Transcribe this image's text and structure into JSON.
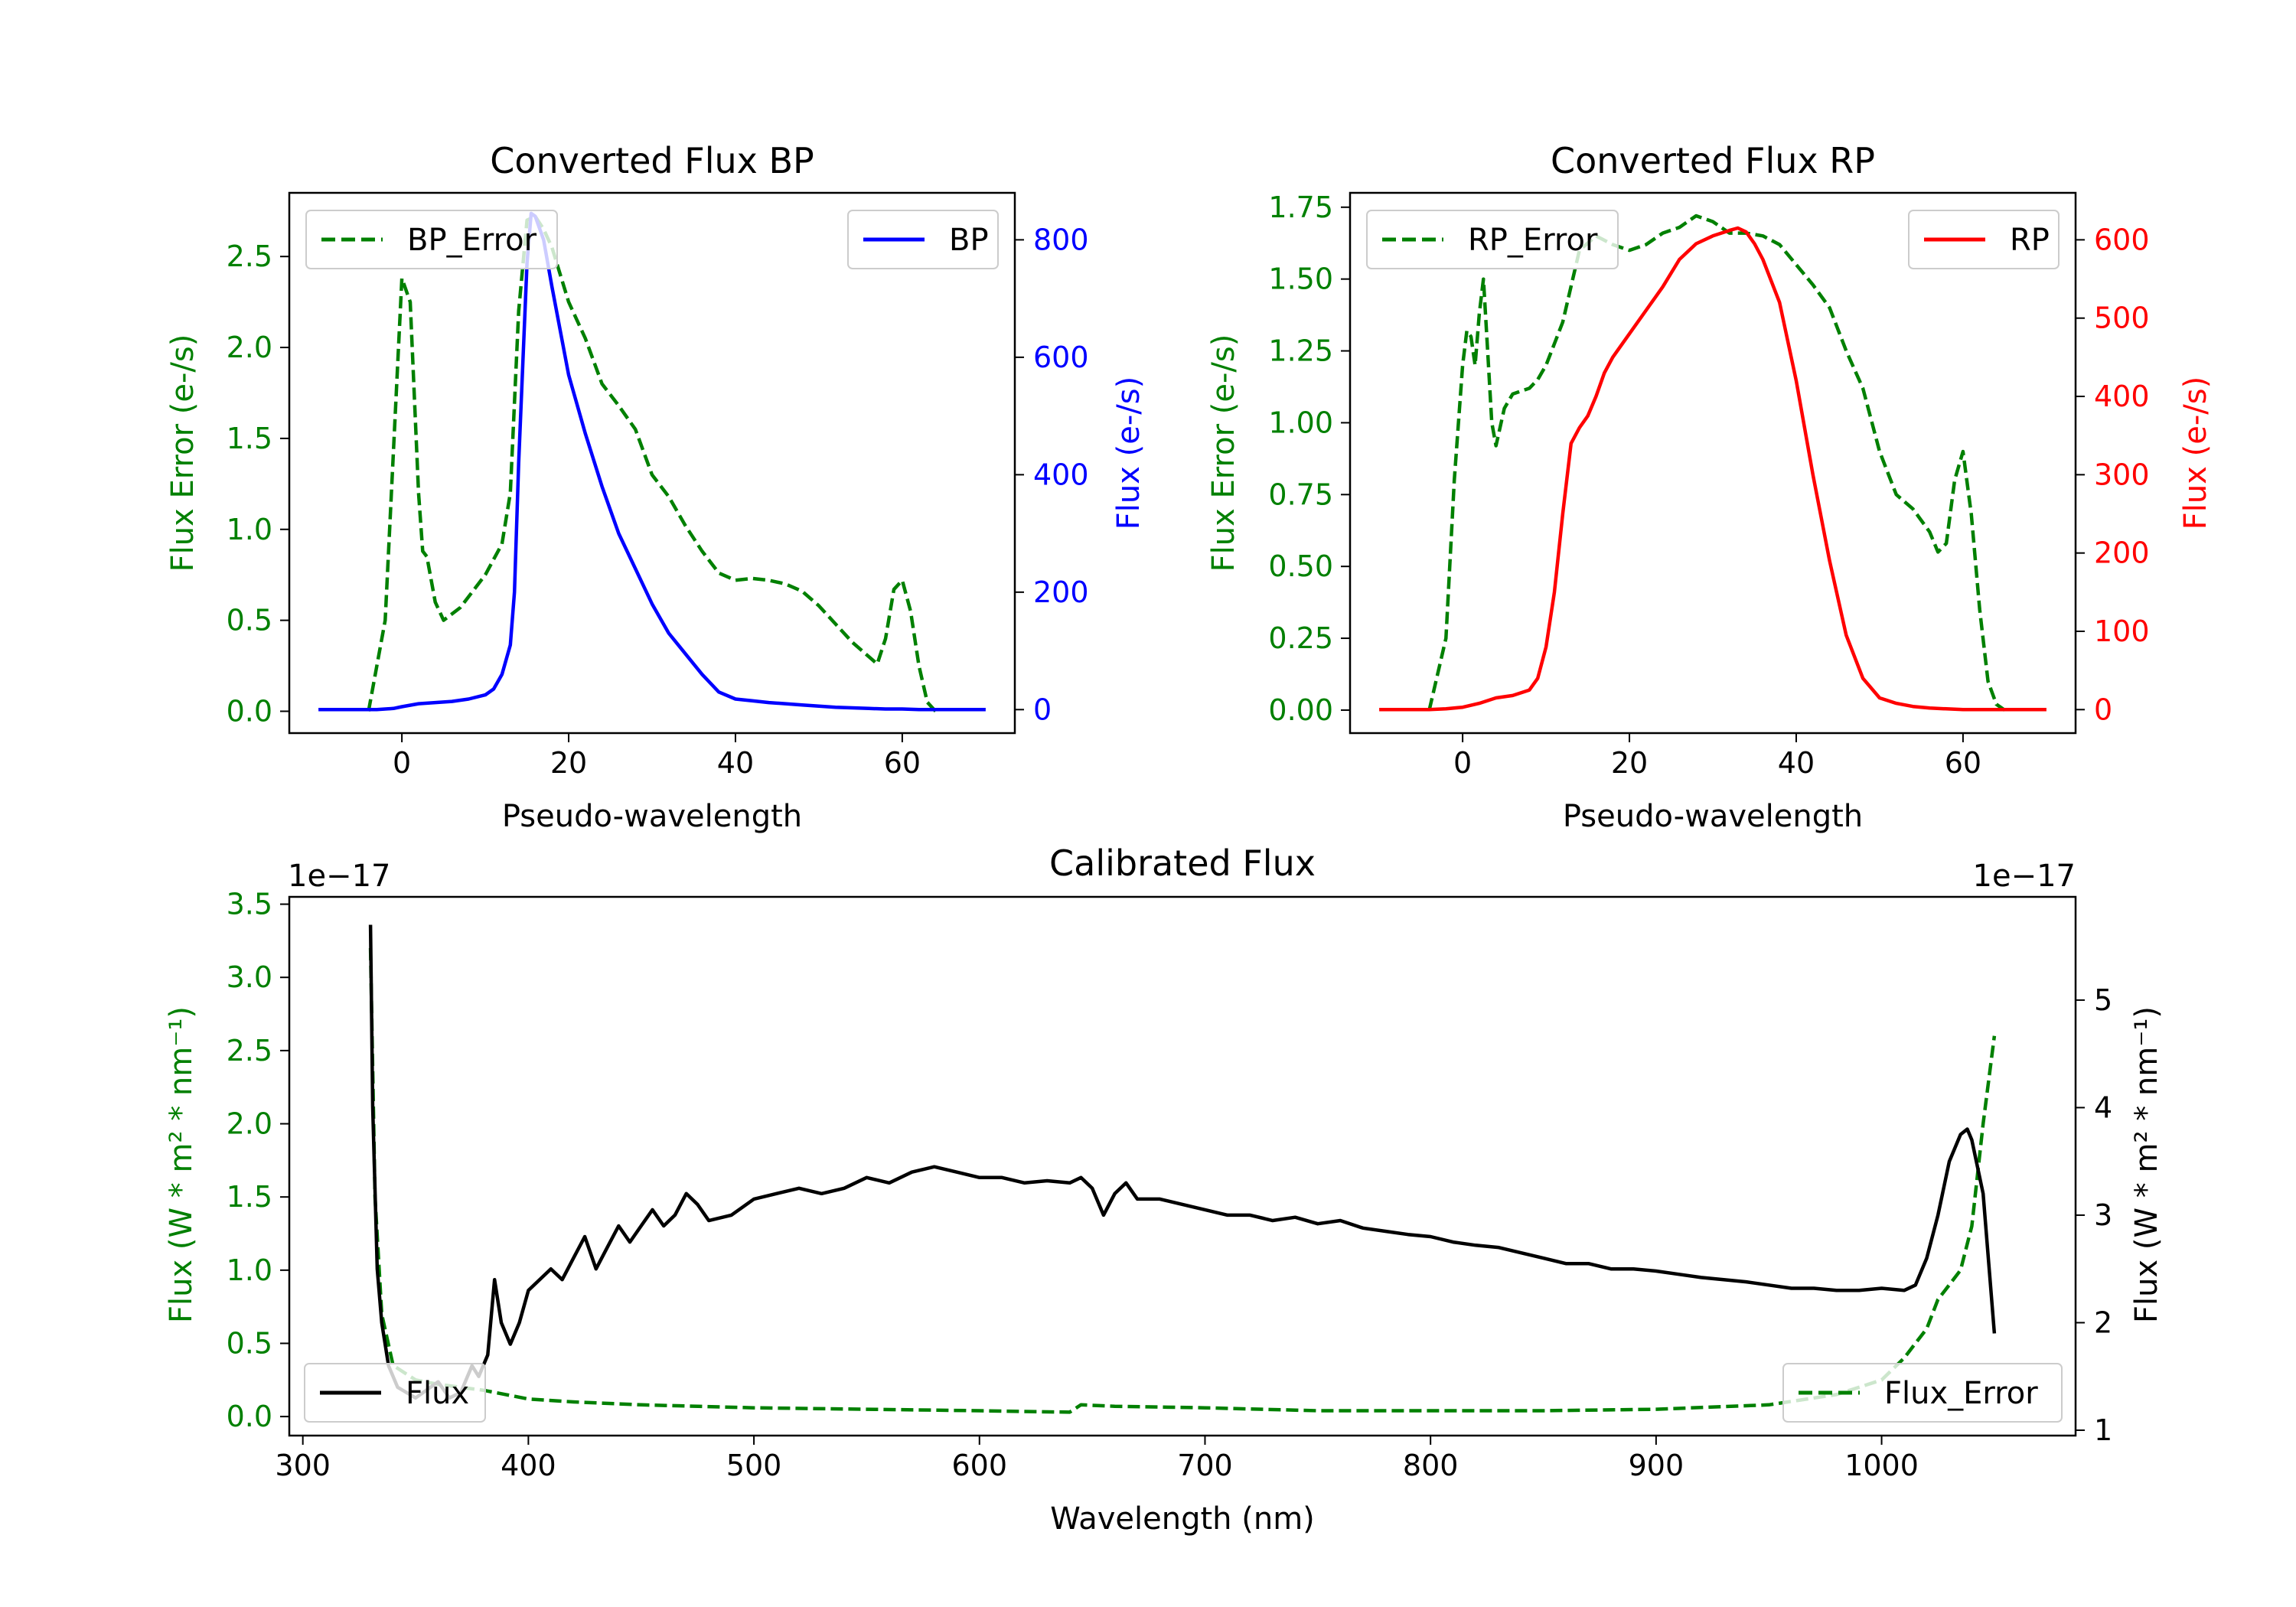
{
  "colors": {
    "bp": "#0000ff",
    "rp": "#ff0000",
    "error": "#008000",
    "flux": "#000000",
    "axis": "#000000"
  },
  "chart_data": [
    {
      "id": "bp",
      "type": "line",
      "title": "Converted Flux BP",
      "xlabel": "Pseudo-wavelength",
      "ylabel_left": "Flux Error (e-/s)",
      "ylabel_right": "Flux (e-/s)",
      "xlim": [
        -13.5,
        73.5
      ],
      "ylim_left": [
        -0.12,
        2.85
      ],
      "ylim_right": [
        -40,
        880
      ],
      "x_ticks": [
        0,
        20,
        40,
        60
      ],
      "x_tick_labels": [
        "0",
        "20",
        "40",
        "60"
      ],
      "yl_ticks": [
        0.0,
        0.5,
        1.0,
        1.5,
        2.0,
        2.5
      ],
      "yl_tick_labels": [
        "0.0",
        "0.5",
        "1.0",
        "1.5",
        "2.0",
        "2.5"
      ],
      "yr_ticks": [
        0,
        200,
        400,
        600,
        800
      ],
      "yr_tick_labels": [
        "0",
        "200",
        "400",
        "600",
        "800"
      ],
      "left_color": "error",
      "right_color": "bp",
      "legend_left": {
        "label": "BP_Error",
        "location": "upper-left"
      },
      "legend_right": {
        "label": "BP",
        "location": "upper-right"
      },
      "series_left": {
        "name": "BP_Error",
        "style": "dashed",
        "x": [
          -4,
          -2,
          0,
          1,
          2,
          2.5,
          3,
          4,
          5,
          7,
          10,
          12,
          13,
          14,
          15,
          16,
          17,
          18,
          20,
          22,
          24,
          26,
          28,
          30,
          32,
          34,
          36,
          38,
          40,
          42,
          44,
          46,
          48,
          50,
          52,
          54,
          56,
          57,
          58,
          59,
          60,
          61,
          62,
          63,
          64
        ],
        "y": [
          0.0,
          0.5,
          2.38,
          2.25,
          1.2,
          0.88,
          0.85,
          0.6,
          0.5,
          0.57,
          0.75,
          0.92,
          1.2,
          2.2,
          2.7,
          2.72,
          2.65,
          2.55,
          2.25,
          2.05,
          1.8,
          1.68,
          1.55,
          1.3,
          1.18,
          1.02,
          0.88,
          0.76,
          0.72,
          0.73,
          0.72,
          0.7,
          0.66,
          0.58,
          0.48,
          0.38,
          0.3,
          0.26,
          0.4,
          0.67,
          0.72,
          0.55,
          0.25,
          0.05,
          0.0
        ]
      },
      "series_right": {
        "name": "BP",
        "style": "solid",
        "x": [
          -10,
          -5,
          -3,
          -1,
          0,
          2,
          4,
          6,
          8,
          10,
          11,
          12,
          13,
          13.5,
          14,
          15,
          15.5,
          16,
          17,
          18,
          20,
          22,
          24,
          26,
          28,
          30,
          32,
          34,
          36,
          38,
          40,
          42,
          44,
          46,
          48,
          50,
          52,
          54,
          56,
          58,
          60,
          62,
          64,
          66,
          68,
          70
        ],
        "y": [
          0,
          0,
          0,
          2,
          5,
          10,
          12,
          14,
          18,
          25,
          35,
          60,
          110,
          200,
          420,
          760,
          845,
          840,
          800,
          720,
          570,
          470,
          380,
          300,
          240,
          180,
          130,
          95,
          60,
          30,
          18,
          15,
          12,
          10,
          8,
          6,
          4,
          3,
          2,
          1,
          1,
          0,
          0,
          0,
          0,
          0
        ]
      }
    },
    {
      "id": "rp",
      "type": "line",
      "title": "Converted Flux RP",
      "xlabel": "Pseudo-wavelength",
      "ylabel_left": "Flux Error (e-/s)",
      "ylabel_right": "Flux (e-/s)",
      "xlim": [
        -13.5,
        73.5
      ],
      "ylim_left": [
        -0.08,
        1.8
      ],
      "ylim_right": [
        -30,
        660
      ],
      "x_ticks": [
        0,
        20,
        40,
        60
      ],
      "x_tick_labels": [
        "0",
        "20",
        "40",
        "60"
      ],
      "yl_ticks": [
        0.0,
        0.25,
        0.5,
        0.75,
        1.0,
        1.25,
        1.5,
        1.75
      ],
      "yl_tick_labels": [
        "0.00",
        "0.25",
        "0.50",
        "0.75",
        "1.00",
        "1.25",
        "1.50",
        "1.75"
      ],
      "yr_ticks": [
        0,
        100,
        200,
        300,
        400,
        500,
        600
      ],
      "yr_tick_labels": [
        "0",
        "100",
        "200",
        "300",
        "400",
        "500",
        "600"
      ],
      "left_color": "error",
      "right_color": "rp",
      "legend_left": {
        "label": "RP_Error",
        "location": "upper-left"
      },
      "legend_right": {
        "label": "RP",
        "location": "upper-right"
      },
      "series_left": {
        "name": "RP_Error",
        "style": "dashed",
        "x": [
          -4,
          -2,
          -1,
          0,
          0.5,
          1,
          1.5,
          2,
          2.5,
          3,
          3.5,
          4,
          5,
          6,
          8,
          9,
          10,
          12,
          14,
          16,
          18,
          20,
          22,
          24,
          26,
          28,
          30,
          32,
          34,
          36,
          38,
          40,
          42,
          44,
          46,
          48,
          50,
          52,
          54,
          56,
          57,
          58,
          59,
          60,
          61,
          62,
          63,
          64,
          65
        ],
        "y": [
          0.0,
          0.25,
          0.8,
          1.2,
          1.32,
          1.3,
          1.2,
          1.38,
          1.5,
          1.25,
          1.0,
          0.92,
          1.05,
          1.1,
          1.12,
          1.15,
          1.2,
          1.35,
          1.6,
          1.65,
          1.62,
          1.6,
          1.62,
          1.66,
          1.68,
          1.72,
          1.7,
          1.66,
          1.66,
          1.65,
          1.62,
          1.55,
          1.48,
          1.4,
          1.25,
          1.12,
          0.9,
          0.75,
          0.7,
          0.62,
          0.55,
          0.58,
          0.8,
          0.9,
          0.68,
          0.35,
          0.1,
          0.02,
          0.0
        ]
      },
      "series_right": {
        "name": "RP",
        "style": "solid",
        "x": [
          -10,
          -4,
          -2,
          0,
          2,
          4,
          6,
          8,
          9,
          10,
          11,
          12,
          13,
          14,
          15,
          16,
          17,
          18,
          20,
          22,
          24,
          26,
          28,
          30,
          32,
          33,
          34,
          35,
          36,
          38,
          40,
          42,
          44,
          46,
          48,
          50,
          52,
          54,
          56,
          58,
          60,
          62,
          64,
          66,
          68,
          70
        ],
        "y": [
          0,
          0,
          1,
          3,
          8,
          15,
          18,
          25,
          40,
          80,
          150,
          250,
          340,
          360,
          375,
          400,
          430,
          450,
          480,
          510,
          540,
          575,
          595,
          605,
          612,
          615,
          610,
          595,
          575,
          520,
          420,
          300,
          190,
          95,
          40,
          15,
          8,
          4,
          2,
          1,
          0,
          0,
          0,
          0,
          0,
          0
        ]
      }
    },
    {
      "id": "cal",
      "type": "line",
      "title": "Calibrated Flux",
      "xlabel": "Wavelength (nm)",
      "ylabel_left": "Flux (W * m² * nm⁻¹)",
      "ylabel_right": "Flux (W * m² * nm⁻¹)",
      "offset_left": "1e−17",
      "offset_right": "1e−17",
      "xlim": [
        294,
        1086
      ],
      "ylim_left": [
        -0.13,
        3.55
      ],
      "ylim_right": [
        0.95,
        5.96
      ],
      "x_ticks": [
        300,
        400,
        500,
        600,
        700,
        800,
        900,
        1000
      ],
      "x_tick_labels": [
        "300",
        "400",
        "500",
        "600",
        "700",
        "800",
        "900",
        "1000"
      ],
      "yl_ticks": [
        0.0,
        0.5,
        1.0,
        1.5,
        2.0,
        2.5,
        3.0,
        3.5
      ],
      "yl_tick_labels": [
        "0.0",
        "0.5",
        "1.0",
        "1.5",
        "2.0",
        "2.5",
        "3.0",
        "3.5"
      ],
      "yr_ticks": [
        1,
        2,
        3,
        4,
        5
      ],
      "yr_tick_labels": [
        "1",
        "2",
        "3",
        "4",
        "5"
      ],
      "left_color": "error",
      "right_color": "flux",
      "legend_left": {
        "label": "Flux",
        "location": "lower-left"
      },
      "legend_right": {
        "label": "Flux_Error",
        "location": "lower-right"
      },
      "series_left": {
        "name": "Flux_Error",
        "style": "dashed",
        "x": [
          330,
          332,
          335,
          340,
          350,
          360,
          370,
          380,
          390,
          400,
          420,
          450,
          500,
          550,
          600,
          640,
          645,
          660,
          700,
          750,
          800,
          850,
          900,
          950,
          980,
          1000,
          1010,
          1020,
          1025,
          1030,
          1035,
          1040,
          1045,
          1050
        ],
        "y": [
          3.2,
          1.5,
          0.7,
          0.35,
          0.25,
          0.22,
          0.2,
          0.18,
          0.15,
          0.12,
          0.1,
          0.08,
          0.06,
          0.05,
          0.04,
          0.03,
          0.08,
          0.07,
          0.06,
          0.04,
          0.04,
          0.04,
          0.05,
          0.08,
          0.15,
          0.25,
          0.4,
          0.6,
          0.8,
          0.9,
          1.0,
          1.3,
          2.0,
          2.6
        ]
      },
      "series_right": {
        "name": "Flux",
        "style": "solid",
        "x": [
          330,
          331,
          333,
          335,
          338,
          342,
          350,
          360,
          365,
          370,
          375,
          378,
          382,
          385,
          388,
          392,
          396,
          400,
          405,
          410,
          415,
          420,
          425,
          430,
          435,
          440,
          445,
          450,
          455,
          460,
          465,
          470,
          475,
          480,
          490,
          500,
          510,
          520,
          530,
          540,
          550,
          560,
          570,
          580,
          590,
          600,
          610,
          620,
          630,
          640,
          645,
          650,
          655,
          660,
          665,
          670,
          680,
          690,
          700,
          710,
          720,
          730,
          740,
          750,
          760,
          770,
          780,
          790,
          800,
          810,
          820,
          830,
          840,
          850,
          860,
          870,
          880,
          890,
          900,
          910,
          920,
          930,
          940,
          950,
          960,
          970,
          980,
          990,
          1000,
          1010,
          1015,
          1020,
          1025,
          1030,
          1035,
          1038,
          1040,
          1045,
          1050
        ],
        "y": [
          5.7,
          4.0,
          2.5,
          2.0,
          1.6,
          1.4,
          1.3,
          1.45,
          1.3,
          1.35,
          1.6,
          1.5,
          1.7,
          2.4,
          2.0,
          1.8,
          2.0,
          2.3,
          2.4,
          2.5,
          2.4,
          2.6,
          2.8,
          2.5,
          2.7,
          2.9,
          2.75,
          2.9,
          3.05,
          2.9,
          3.0,
          3.2,
          3.1,
          2.95,
          3.0,
          3.15,
          3.2,
          3.25,
          3.2,
          3.25,
          3.35,
          3.3,
          3.4,
          3.45,
          3.4,
          3.35,
          3.35,
          3.3,
          3.32,
          3.3,
          3.35,
          3.25,
          3.0,
          3.2,
          3.3,
          3.15,
          3.15,
          3.1,
          3.05,
          3.0,
          3.0,
          2.95,
          2.98,
          2.92,
          2.95,
          2.88,
          2.85,
          2.82,
          2.8,
          2.75,
          2.72,
          2.7,
          2.65,
          2.6,
          2.55,
          2.55,
          2.5,
          2.5,
          2.48,
          2.45,
          2.42,
          2.4,
          2.38,
          2.35,
          2.32,
          2.32,
          2.3,
          2.3,
          2.32,
          2.3,
          2.35,
          2.6,
          3.0,
          3.5,
          3.75,
          3.8,
          3.7,
          3.2,
          1.9
        ]
      }
    }
  ]
}
